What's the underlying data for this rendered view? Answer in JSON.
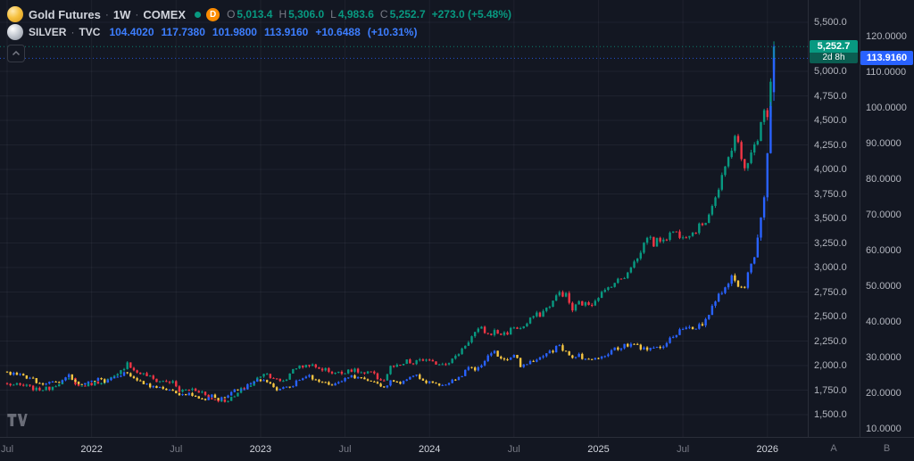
{
  "colors": {
    "background": "#131722",
    "border": "#2a2e39",
    "up": "#089981",
    "down": "#f23645",
    "blue": "#2962ff",
    "blue_text": "#3d7eff",
    "yellow": "#f5c542",
    "text": "#d1d4dc",
    "muted": "#787b86",
    "axis_text": "#b2b5be",
    "delayed": "#fb8c00"
  },
  "legend": {
    "separator": "·",
    "gold": {
      "title": "Gold Futures",
      "interval": "1W",
      "exchange": "COMEX",
      "delayed_label": "D",
      "ohlc": [
        {
          "label": "O",
          "value": "5,013.4"
        },
        {
          "label": "H",
          "value": "5,306.0"
        },
        {
          "label": "L",
          "value": "4,983.6"
        },
        {
          "label": "C",
          "value": "5,252.7"
        }
      ],
      "change": "+273.0 (+5.48%)"
    },
    "silver": {
      "title": "SILVER",
      "exchange": "TVC",
      "values": [
        "104.4020",
        "117.7380",
        "101.9800",
        "113.9160",
        "+10.6488",
        "(+10.31%)"
      ]
    }
  },
  "price_axis": {
    "gold": {
      "scale_label": "A",
      "badge": {
        "price": "5,252.7",
        "countdown": "2d 8h"
      },
      "ticks": [
        {
          "v": 5500,
          "label": "5,500.0"
        },
        {
          "v": 5000,
          "label": "5,000.0"
        },
        {
          "v": 4750,
          "label": "4,750.0"
        },
        {
          "v": 4500,
          "label": "4,500.0"
        },
        {
          "v": 4250,
          "label": "4,250.0"
        },
        {
          "v": 4000,
          "label": "4,000.0"
        },
        {
          "v": 3750,
          "label": "3,750.0"
        },
        {
          "v": 3500,
          "label": "3,500.0"
        },
        {
          "v": 3250,
          "label": "3,250.0"
        },
        {
          "v": 3000,
          "label": "3,000.0"
        },
        {
          "v": 2750,
          "label": "2,750.0"
        },
        {
          "v": 2500,
          "label": "2,500.0"
        },
        {
          "v": 2250,
          "label": "2,250.0"
        },
        {
          "v": 2000,
          "label": "2,000.0"
        },
        {
          "v": 1750,
          "label": "1,750.0"
        },
        {
          "v": 1500,
          "label": "1,500.0"
        }
      ]
    },
    "silver": {
      "scale_label": "B",
      "badge": {
        "price": "113.9160"
      },
      "ticks": [
        {
          "v": 120,
          "label": "120.0000"
        },
        {
          "v": 110,
          "label": "110.0000"
        },
        {
          "v": 100,
          "label": "100.0000"
        },
        {
          "v": 90,
          "label": "90.0000"
        },
        {
          "v": 80,
          "label": "80.0000"
        },
        {
          "v": 70,
          "label": "70.0000"
        },
        {
          "v": 60,
          "label": "60.0000"
        },
        {
          "v": 50,
          "label": "50.0000"
        },
        {
          "v": 40,
          "label": "40.0000"
        },
        {
          "v": 30,
          "label": "30.0000"
        },
        {
          "v": 20,
          "label": "20.0000"
        },
        {
          "v": 10,
          "label": "10.0000"
        }
      ]
    }
  },
  "time_axis": {
    "ticks": [
      {
        "label": "Jul",
        "week": 0,
        "major": false
      },
      {
        "label": "2022",
        "week": 26,
        "major": true
      },
      {
        "label": "Jul",
        "week": 52,
        "major": false
      },
      {
        "label": "2023",
        "week": 78,
        "major": true
      },
      {
        "label": "Jul",
        "week": 104,
        "major": false
      },
      {
        "label": "2024",
        "week": 130,
        "major": true
      },
      {
        "label": "Jul",
        "week": 156,
        "major": false
      },
      {
        "label": "2025",
        "week": 182,
        "major": true
      },
      {
        "label": "Jul",
        "week": 208,
        "major": false
      },
      {
        "label": "2026",
        "week": 234,
        "major": true
      }
    ]
  },
  "chart_data": {
    "type": "candlestick",
    "timeframe": "1W",
    "weeks": 237,
    "x_start_label": "Jul 2021",
    "gold_axis": {
      "min": 1500,
      "max": 5500
    },
    "silver_axis": {
      "min": 10,
      "max": 120
    },
    "series": [
      {
        "name": "Gold Futures (COMEX, 1W)",
        "axis": "gold",
        "up_color": "#089981",
        "down_color": "#f23645",
        "seed": 7,
        "noise": 0.011,
        "last_ohlc": [
          5013.4,
          5306.0,
          4983.6,
          5252.7
        ],
        "anchors": [
          [
            0,
            1810
          ],
          [
            6,
            1790
          ],
          [
            9,
            1755
          ],
          [
            13,
            1770
          ],
          [
            17,
            1845
          ],
          [
            20,
            1862
          ],
          [
            22,
            1790
          ],
          [
            24,
            1800
          ],
          [
            28,
            1832
          ],
          [
            31,
            1852
          ],
          [
            34,
            1900
          ],
          [
            36,
            1985
          ],
          [
            37,
            2040
          ],
          [
            39,
            1945
          ],
          [
            43,
            1900
          ],
          [
            46,
            1845
          ],
          [
            49,
            1838
          ],
          [
            51,
            1828
          ],
          [
            53,
            1740
          ],
          [
            57,
            1762
          ],
          [
            60,
            1730
          ],
          [
            62,
            1670
          ],
          [
            65,
            1650
          ],
          [
            67,
            1640
          ],
          [
            70,
            1682
          ],
          [
            72,
            1755
          ],
          [
            75,
            1800
          ],
          [
            77,
            1870
          ],
          [
            79,
            1928
          ],
          [
            82,
            1878
          ],
          [
            84,
            1832
          ],
          [
            86,
            1862
          ],
          [
            88,
            1975
          ],
          [
            91,
            1992
          ],
          [
            93,
            2015
          ],
          [
            95,
            1975
          ],
          [
            98,
            1960
          ],
          [
            100,
            1932
          ],
          [
            103,
            1922
          ],
          [
            105,
            1962
          ],
          [
            108,
            1940
          ],
          [
            110,
            1916
          ],
          [
            112,
            1930
          ],
          [
            114,
            1872
          ],
          [
            116,
            1848
          ],
          [
            118,
            1985
          ],
          [
            121,
            1992
          ],
          [
            123,
            2044
          ],
          [
            125,
            2012
          ],
          [
            127,
            2064
          ],
          [
            129,
            2050
          ],
          [
            131,
            2026
          ],
          [
            134,
            2022
          ],
          [
            136,
            2042
          ],
          [
            138,
            2086
          ],
          [
            140,
            2172
          ],
          [
            142,
            2252
          ],
          [
            144,
            2336
          ],
          [
            146,
            2374
          ],
          [
            148,
            2316
          ],
          [
            150,
            2346
          ],
          [
            152,
            2322
          ],
          [
            154,
            2336
          ],
          [
            156,
            2396
          ],
          [
            158,
            2376
          ],
          [
            160,
            2426
          ],
          [
            162,
            2506
          ],
          [
            164,
            2522
          ],
          [
            166,
            2582
          ],
          [
            168,
            2656
          ],
          [
            170,
            2744
          ],
          [
            172,
            2716
          ],
          [
            174,
            2566
          ],
          [
            176,
            2642
          ],
          [
            178,
            2622
          ],
          [
            180,
            2636
          ],
          [
            182,
            2716
          ],
          [
            184,
            2756
          ],
          [
            186,
            2832
          ],
          [
            188,
            2866
          ],
          [
            190,
            2912
          ],
          [
            192,
            3022
          ],
          [
            194,
            3086
          ],
          [
            196,
            3242
          ],
          [
            197,
            3330
          ],
          [
            199,
            3242
          ],
          [
            201,
            3292
          ],
          [
            203,
            3312
          ],
          [
            205,
            3372
          ],
          [
            207,
            3336
          ],
          [
            209,
            3342
          ],
          [
            211,
            3356
          ],
          [
            213,
            3412
          ],
          [
            215,
            3482
          ],
          [
            217,
            3642
          ],
          [
            219,
            3792
          ],
          [
            221,
            4012
          ],
          [
            223,
            4222
          ],
          [
            224,
            4362
          ],
          [
            225,
            4252
          ],
          [
            226,
            4082
          ],
          [
            227,
            4012
          ],
          [
            228,
            4102
          ],
          [
            229,
            4152
          ],
          [
            230,
            4232
          ],
          [
            231,
            4332
          ],
          [
            232,
            4522
          ],
          [
            233,
            4622
          ],
          [
            234,
            4562
          ],
          [
            235,
            4920
          ],
          [
            236,
            5252.7
          ]
        ]
      },
      {
        "name": "SILVER (TVC)",
        "axis": "silver",
        "up_color": "#2962ff",
        "down_color": "#f5c542",
        "seed": 99,
        "noise": 0.02,
        "last_ohlc": [
          104.402,
          117.738,
          101.98,
          113.916
        ],
        "anchors": [
          [
            0,
            25.6
          ],
          [
            4,
            25.2
          ],
          [
            8,
            23.8
          ],
          [
            10,
            22.6
          ],
          [
            12,
            22.4
          ],
          [
            14,
            23.3
          ],
          [
            17,
            23.4
          ],
          [
            19,
            24.8
          ],
          [
            22,
            22.3
          ],
          [
            24,
            22.9
          ],
          [
            27,
            23.9
          ],
          [
            30,
            23.5
          ],
          [
            33,
            24.2
          ],
          [
            36,
            25.4
          ],
          [
            38,
            24.9
          ],
          [
            41,
            23.1
          ],
          [
            44,
            21.9
          ],
          [
            47,
            21.6
          ],
          [
            50,
            20.9
          ],
          [
            53,
            19.1
          ],
          [
            56,
            19.9
          ],
          [
            59,
            18.8
          ],
          [
            61,
            18.2
          ],
          [
            63,
            19.3
          ],
          [
            65,
            18.4
          ],
          [
            67,
            19.1
          ],
          [
            70,
            21.0
          ],
          [
            73,
            21.5
          ],
          [
            75,
            23.2
          ],
          [
            77,
            23.9
          ],
          [
            79,
            23.6
          ],
          [
            81,
            22.3
          ],
          [
            83,
            20.9
          ],
          [
            85,
            21.6
          ],
          [
            88,
            22.4
          ],
          [
            90,
            24.1
          ],
          [
            92,
            25.1
          ],
          [
            94,
            24.2
          ],
          [
            96,
            23.6
          ],
          [
            99,
            22.4
          ],
          [
            101,
            22.7
          ],
          [
            103,
            23.1
          ],
          [
            105,
            24.8
          ],
          [
            108,
            24.2
          ],
          [
            110,
            24.2
          ],
          [
            112,
            23.2
          ],
          [
            114,
            22.4
          ],
          [
            116,
            21.9
          ],
          [
            118,
            23.3
          ],
          [
            121,
            22.6
          ],
          [
            123,
            24.3
          ],
          [
            125,
            25.3
          ],
          [
            127,
            24.2
          ],
          [
            129,
            23.3
          ],
          [
            131,
            22.5
          ],
          [
            134,
            22.3
          ],
          [
            136,
            22.9
          ],
          [
            138,
            24.1
          ],
          [
            140,
            24.9
          ],
          [
            142,
            27.5
          ],
          [
            144,
            26.8
          ],
          [
            146,
            28.3
          ],
          [
            148,
            30.3
          ],
          [
            150,
            31.5
          ],
          [
            152,
            29.5
          ],
          [
            154,
            29.2
          ],
          [
            156,
            30.8
          ],
          [
            158,
            27.9
          ],
          [
            160,
            28.4
          ],
          [
            162,
            28.9
          ],
          [
            164,
            29.9
          ],
          [
            166,
            31.1
          ],
          [
            168,
            31.7
          ],
          [
            170,
            33.7
          ],
          [
            172,
            31.3
          ],
          [
            174,
            30.2
          ],
          [
            176,
            30.5
          ],
          [
            178,
            29.5
          ],
          [
            180,
            29.9
          ],
          [
            182,
            30.3
          ],
          [
            184,
            30.9
          ],
          [
            186,
            32.1
          ],
          [
            188,
            32.4
          ],
          [
            190,
            33.3
          ],
          [
            192,
            33.9
          ],
          [
            194,
            33.1
          ],
          [
            196,
            32.4
          ],
          [
            198,
            32.3
          ],
          [
            200,
            33.1
          ],
          [
            202,
            33.4
          ],
          [
            204,
            35.9
          ],
          [
            206,
            36.4
          ],
          [
            208,
            38.2
          ],
          [
            210,
            38.0
          ],
          [
            212,
            38.3
          ],
          [
            214,
            39.5
          ],
          [
            216,
            42.2
          ],
          [
            218,
            46.5
          ],
          [
            220,
            48.3
          ],
          [
            222,
            51.5
          ],
          [
            224,
            52.5
          ],
          [
            226,
            48.9
          ],
          [
            227,
            49.5
          ],
          [
            228,
            53.5
          ],
          [
            229,
            56.5
          ],
          [
            230,
            58.5
          ],
          [
            231,
            62.5
          ],
          [
            232,
            68
          ],
          [
            233,
            75
          ],
          [
            234,
            86
          ],
          [
            235,
            101
          ],
          [
            236,
            113.916
          ]
        ]
      }
    ]
  }
}
